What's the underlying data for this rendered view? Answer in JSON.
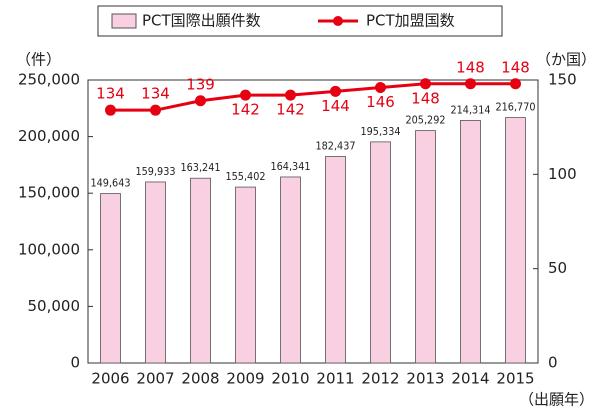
{
  "chart_data": {
    "type": "bar",
    "categories": [
      "2006",
      "2007",
      "2008",
      "2009",
      "2010",
      "2011",
      "2012",
      "2013",
      "2014",
      "2015"
    ],
    "series": [
      {
        "name": "PCT国際出願件数",
        "type": "bar",
        "color": "#f8d0e2",
        "values": [
          149643,
          159933,
          163241,
          155402,
          164341,
          182437,
          195334,
          205292,
          214314,
          216770
        ],
        "value_labels": [
          "149,643",
          "159,933",
          "163,241",
          "155,402",
          "164,341",
          "182,437",
          "195,334",
          "205,292",
          "214,314",
          "216,770"
        ]
      },
      {
        "name": "PCT加盟国数",
        "type": "line",
        "axis": "y2",
        "color": "#e60012",
        "values": [
          134,
          134,
          139,
          142,
          142,
          144,
          146,
          148,
          148,
          148
        ]
      }
    ],
    "ylabel": "（件）",
    "y2label": "（か国）",
    "xlabel": "（出願年）",
    "ylim": [
      0,
      250000
    ],
    "yticks": [
      0,
      {
        "value": 50000,
        "label": "50,000"
      },
      {
        "value": 100000,
        "label": "100,000"
      },
      {
        "value": 150000,
        "label": "150,000"
      },
      {
        "value": 200000,
        "label": "200,000"
      },
      {
        "value": 250000,
        "label": "250,000"
      }
    ],
    "y2lim": [
      0,
      150
    ],
    "y2ticks": [
      0,
      50,
      100,
      150
    ],
    "legend": "top"
  }
}
